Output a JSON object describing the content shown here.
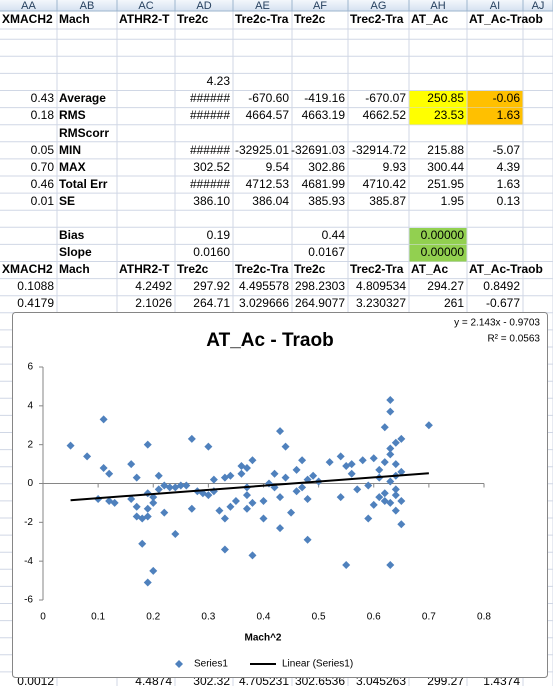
{
  "sheet": {
    "columns": [
      "AA",
      "AB",
      "AC",
      "AD",
      "AE",
      "AF",
      "AG",
      "AH",
      "AI",
      "AJ"
    ],
    "rows": [
      {
        "bold": true,
        "cells": [
          "XMACH2",
          "Mach",
          "ATHR2-T",
          "Tre2c",
          "Tre2c-Tra",
          "Tre2c",
          "Trec2-Tra",
          "AT_Ac",
          "AT_Ac-Traob"
        ]
      },
      {
        "cells": [
          null,
          null,
          null,
          "4.23",
          null,
          null,
          null,
          null,
          null
        ]
      },
      {
        "cells": [
          "0.43",
          "Average",
          null,
          "######",
          "-670.60",
          "-419.16",
          "-670.07",
          "250.85",
          "-0.06"
        ]
      },
      {
        "cells": [
          "0.18",
          "RMS",
          null,
          "######",
          "4664.57",
          "4663.19",
          "4662.52",
          "23.53",
          "1.63"
        ]
      },
      {
        "cells": [
          null,
          "RMScorr",
          null,
          null,
          null,
          null,
          null,
          null,
          null
        ]
      },
      {
        "cells": [
          "0.05",
          "MIN",
          null,
          "######",
          "-32925.01",
          "-32691.03",
          "-32914.72",
          "215.88",
          "-5.07"
        ]
      },
      {
        "cells": [
          "0.70",
          "MAX",
          null,
          "302.52",
          "9.54",
          "302.86",
          "9.93",
          "300.44",
          "4.39"
        ]
      },
      {
        "cells": [
          "0.46",
          "Total Err",
          null,
          "######",
          "4712.53",
          "4681.99",
          "4710.42",
          "251.95",
          "1.63"
        ]
      },
      {
        "cells": [
          "0.01",
          "SE",
          null,
          "386.10",
          "386.04",
          "385.93",
          "385.87",
          "1.95",
          "0.13"
        ]
      },
      {
        "cells": [
          null,
          "Bias",
          null,
          "0.19",
          null,
          "0.44",
          null,
          "0.00000",
          null
        ]
      },
      {
        "cells": [
          null,
          "Slope",
          null,
          "0.0160",
          null,
          "0.0167",
          null,
          "0.00000",
          null
        ]
      },
      {
        "bold": true,
        "cells": [
          "XMACH2",
          "Mach",
          "ATHR2-T",
          "Tre2c",
          "Tre2c-Tra",
          "Tre2c",
          "Trec2-Tra",
          "AT_Ac",
          "AT_Ac-Traob"
        ]
      },
      {
        "cells": [
          "0.1088",
          null,
          "4.2492",
          "297.92",
          "4.495578",
          "298.2303",
          "4.809534",
          "294.27",
          "0.8492"
        ]
      },
      {
        "cells": [
          "0.4179",
          null,
          "2.1026",
          "264.71",
          "3.029666",
          "264.9077",
          "3.230327",
          "261",
          "-0.677"
        ]
      },
      {
        "cells": [
          "0.0012",
          null,
          "4.4874",
          "302.32",
          "4.705231",
          "302.6536",
          "3.045263",
          "299.27",
          "1.4374"
        ]
      }
    ],
    "cell_fills": {
      "2.7": "#ffff00",
      "2.8": "#ffc000",
      "3.7": "#ffff00",
      "3.8": "#ffc000",
      "9.7": "#92d050",
      "10.7": "#92d050"
    }
  },
  "chart_data": {
    "type": "scatter",
    "title": "AT_Ac - Traob",
    "x_label": "Mach^2",
    "series": [
      {
        "name": "Series1",
        "color": "#4f81bd",
        "x": [
          0.05,
          0.08,
          0.1,
          0.11,
          0.11,
          0.12,
          0.12,
          0.13,
          0.16,
          0.16,
          0.17,
          0.17,
          0.17,
          0.18,
          0.18,
          0.19,
          0.19,
          0.19,
          0.19,
          0.2,
          0.19,
          0.2,
          0.2,
          0.21,
          0.21,
          0.22,
          0.22,
          0.23,
          0.24,
          0.24,
          0.25,
          0.26,
          0.27,
          0.27,
          0.28,
          0.29,
          0.3,
          0.3,
          0.31,
          0.31,
          0.32,
          0.33,
          0.33,
          0.33,
          0.34,
          0.34,
          0.35,
          0.36,
          0.36,
          0.37,
          0.37,
          0.37,
          0.37,
          0.38,
          0.38,
          0.38,
          0.4,
          0.4,
          0.41,
          0.42,
          0.42,
          0.43,
          0.43,
          0.43,
          0.44,
          0.44,
          0.45,
          0.46,
          0.46,
          0.47,
          0.47,
          0.48,
          0.48,
          0.48,
          0.49,
          0.5,
          0.52,
          0.54,
          0.54,
          0.55,
          0.55,
          0.56,
          0.56,
          0.57,
          0.58,
          0.59,
          0.59,
          0.6,
          0.6,
          0.61,
          0.61,
          0.62,
          0.62,
          0.62,
          0.63,
          0.63,
          0.63,
          0.63,
          0.63,
          0.63,
          0.64,
          0.64,
          0.64,
          0.64,
          0.64,
          0.65,
          0.65,
          0.65,
          0.65,
          0.7,
          0.64,
          0.63,
          0.62,
          0.61
        ],
        "values": [
          1.95,
          1.4,
          -0.8,
          3.3,
          0.8,
          0.5,
          -0.9,
          -1.0,
          1.0,
          -0.8,
          -1.7,
          -1.2,
          0.3,
          -3.1,
          -1.8,
          2.0,
          -0.5,
          -1.3,
          -1.7,
          -4.5,
          -5.1,
          -0.7,
          -1.0,
          0.4,
          -0.3,
          -0.1,
          -1.5,
          -0.2,
          -0.2,
          -2.6,
          -0.1,
          -0.1,
          2.3,
          -1.3,
          -0.4,
          -0.5,
          1.9,
          -0.6,
          -0.4,
          0.2,
          -1.4,
          0.3,
          -1.8,
          -3.4,
          0.4,
          -1.2,
          -0.9,
          0.5,
          0.9,
          -0.2,
          -0.6,
          -1.3,
          0.8,
          -3.7,
          -1.0,
          1.2,
          -0.9,
          -1.8,
          0.0,
          0.5,
          -0.2,
          2.7,
          -2.3,
          -0.7,
          1.9,
          0.3,
          -1.5,
          0.7,
          -0.4,
          -0.2,
          1.2,
          0.2,
          -2.9,
          -0.8,
          0.4,
          0.1,
          1.1,
          -0.7,
          1.4,
          0.9,
          -4.2,
          0.5,
          1.0,
          -0.3,
          1.2,
          -0.1,
          -1.8,
          1.3,
          -1.1,
          -0.7,
          0.3,
          1.1,
          -0.5,
          2.9,
          4.3,
          3.7,
          1.8,
          0.1,
          -1.0,
          -4.2,
          2.1,
          1.0,
          0.4,
          -0.3,
          -1.4,
          2.3,
          0.6,
          -0.9,
          -2.1,
          3.0,
          -0.6,
          1.5,
          -0.9,
          0.7
        ]
      }
    ],
    "trendline": {
      "name": "Linear (Series1)",
      "color": "#000000",
      "label": "y = 2.143x - 0.9703",
      "r2_label": "R² = 0.0563",
      "slope": 2.143,
      "intercept": -0.9703,
      "x_range": [
        0.05,
        0.7
      ]
    },
    "xlim": [
      0,
      0.8
    ],
    "xticks": [
      0,
      0.1,
      0.2,
      0.3,
      0.4,
      0.5,
      0.6,
      0.7,
      0.8
    ],
    "ylim": [
      -6,
      6
    ],
    "yticks": [
      -6,
      -4,
      -2,
      0,
      2,
      4,
      6
    ],
    "legend": "bottom"
  }
}
